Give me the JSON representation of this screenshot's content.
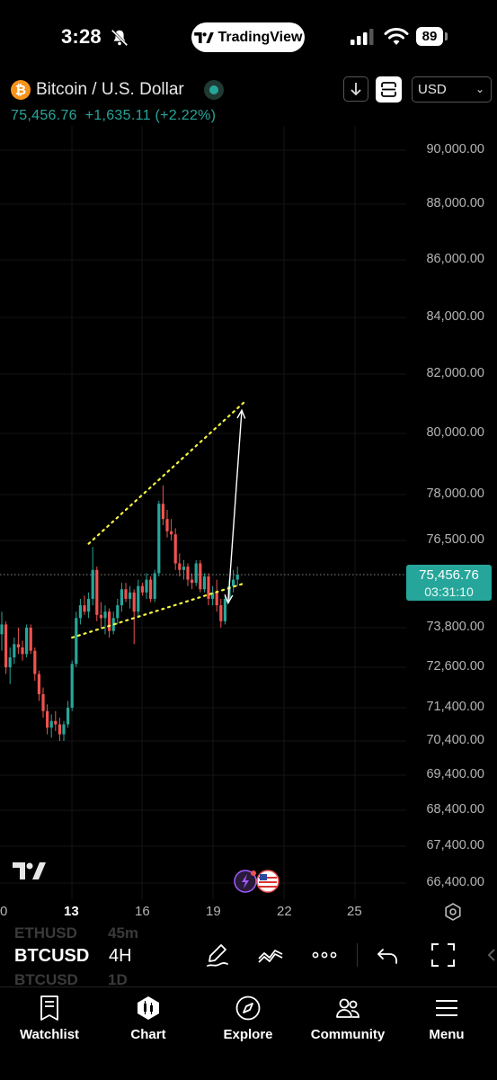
{
  "status_bar": {
    "time": "3:28",
    "battery": "89",
    "tradingview_label": "TradingView"
  },
  "header": {
    "title": "Bitcoin / U.S. Dollar",
    "price": "75,456.76",
    "change": "+1,635.11",
    "change_pct": "(+2.22%)",
    "currency": "USD"
  },
  "price_axis": [
    "90,000.00",
    "88,000.00",
    "86,000.00",
    "84,000.00",
    "82,000.00",
    "80,000.00",
    "78,000.00",
    "76,500.00",
    "73,800.00",
    "72,600.00",
    "71,400.00",
    "70,400.00",
    "69,400.00",
    "68,400.00",
    "67,400.00",
    "66,400.00"
  ],
  "last_price_badge": {
    "price": "75,456.76",
    "countdown": "03:31:10"
  },
  "date_axis": [
    "0",
    "13",
    "16",
    "19",
    "22",
    "25"
  ],
  "toolbar": {
    "symbol": "BTCUSD",
    "interval": "4H",
    "ghost_above_symbol": "ETHUSD",
    "ghost_above_interval": "45m",
    "ghost_below_symbol": "BTCUSD",
    "ghost_below_interval": "1D"
  },
  "bottom_nav": [
    {
      "label": "Watchlist",
      "icon": "watchlist-icon"
    },
    {
      "label": "Chart",
      "icon": "chart-icon"
    },
    {
      "label": "Explore",
      "icon": "compass-icon"
    },
    {
      "label": "Community",
      "icon": "community-icon"
    },
    {
      "label": "Menu",
      "icon": "menu-icon"
    }
  ],
  "colors": {
    "up": "#26a69a",
    "down": "#ef5350",
    "trendline": "#f5f542",
    "background": "#000000"
  },
  "chart_data": {
    "type": "candlestick",
    "symbol": "BTCUSD",
    "interval": "4H",
    "last_price": 75456.76,
    "candles": [
      {
        "o": 73600,
        "h": 74300,
        "l": 73100,
        "c": 73900
      },
      {
        "o": 73900,
        "h": 74000,
        "l": 72400,
        "c": 72600
      },
      {
        "o": 72600,
        "h": 73200,
        "l": 72100,
        "c": 72900
      },
      {
        "o": 72900,
        "h": 73500,
        "l": 72700,
        "c": 73300
      },
      {
        "o": 73300,
        "h": 73800,
        "l": 73000,
        "c": 73200
      },
      {
        "o": 73200,
        "h": 73400,
        "l": 72800,
        "c": 73000
      },
      {
        "o": 73000,
        "h": 73900,
        "l": 72900,
        "c": 73800
      },
      {
        "o": 73800,
        "h": 73900,
        "l": 73000,
        "c": 73100
      },
      {
        "o": 73100,
        "h": 73200,
        "l": 72200,
        "c": 72400
      },
      {
        "o": 72400,
        "h": 72500,
        "l": 71600,
        "c": 71800
      },
      {
        "o": 71800,
        "h": 72000,
        "l": 71100,
        "c": 71300
      },
      {
        "o": 71300,
        "h": 71500,
        "l": 70600,
        "c": 70800
      },
      {
        "o": 70800,
        "h": 71200,
        "l": 70500,
        "c": 71000
      },
      {
        "o": 71000,
        "h": 71300,
        "l": 70700,
        "c": 70900
      },
      {
        "o": 70900,
        "h": 71100,
        "l": 70400,
        "c": 70600
      },
      {
        "o": 70600,
        "h": 71000,
        "l": 70400,
        "c": 70900
      },
      {
        "o": 70900,
        "h": 71600,
        "l": 70800,
        "c": 71400
      },
      {
        "o": 71400,
        "h": 72800,
        "l": 71300,
        "c": 72700
      },
      {
        "o": 72700,
        "h": 74300,
        "l": 72600,
        "c": 74100
      },
      {
        "o": 74100,
        "h": 74700,
        "l": 73900,
        "c": 74500
      },
      {
        "o": 74500,
        "h": 74800,
        "l": 74200,
        "c": 74300
      },
      {
        "o": 74300,
        "h": 74900,
        "l": 74100,
        "c": 74700
      },
      {
        "o": 74700,
        "h": 76300,
        "l": 74500,
        "c": 75600
      },
      {
        "o": 75600,
        "h": 75700,
        "l": 74000,
        "c": 74200
      },
      {
        "o": 74200,
        "h": 74600,
        "l": 73800,
        "c": 74100
      },
      {
        "o": 74100,
        "h": 74500,
        "l": 73600,
        "c": 74300
      },
      {
        "o": 74300,
        "h": 74400,
        "l": 73500,
        "c": 73700
      },
      {
        "o": 73700,
        "h": 74300,
        "l": 73600,
        "c": 74100
      },
      {
        "o": 74100,
        "h": 74700,
        "l": 73900,
        "c": 74500
      },
      {
        "o": 74500,
        "h": 75200,
        "l": 74300,
        "c": 75000
      },
      {
        "o": 75000,
        "h": 75200,
        "l": 74600,
        "c": 74700
      },
      {
        "o": 74700,
        "h": 75100,
        "l": 74400,
        "c": 74900
      },
      {
        "o": 74900,
        "h": 75000,
        "l": 73300,
        "c": 74300
      },
      {
        "o": 74300,
        "h": 75300,
        "l": 74100,
        "c": 75100
      },
      {
        "o": 75100,
        "h": 75200,
        "l": 74800,
        "c": 74900
      },
      {
        "o": 74900,
        "h": 75500,
        "l": 74700,
        "c": 75300
      },
      {
        "o": 75300,
        "h": 75400,
        "l": 74600,
        "c": 74700
      },
      {
        "o": 74700,
        "h": 75600,
        "l": 74600,
        "c": 75500
      },
      {
        "o": 75500,
        "h": 77800,
        "l": 75400,
        "c": 77700
      },
      {
        "o": 77700,
        "h": 78300,
        "l": 77000,
        "c": 77200
      },
      {
        "o": 77200,
        "h": 77500,
        "l": 76600,
        "c": 76800
      },
      {
        "o": 76800,
        "h": 77200,
        "l": 76500,
        "c": 76700
      },
      {
        "o": 76700,
        "h": 76900,
        "l": 75600,
        "c": 75800
      },
      {
        "o": 75800,
        "h": 76100,
        "l": 75400,
        "c": 75600
      },
      {
        "o": 75600,
        "h": 75900,
        "l": 75300,
        "c": 75700
      },
      {
        "o": 75700,
        "h": 75800,
        "l": 75100,
        "c": 75300
      },
      {
        "o": 75300,
        "h": 75500,
        "l": 75000,
        "c": 75200
      },
      {
        "o": 75200,
        "h": 75900,
        "l": 75100,
        "c": 75800
      },
      {
        "o": 75800,
        "h": 75900,
        "l": 74900,
        "c": 75000
      },
      {
        "o": 75000,
        "h": 75500,
        "l": 74900,
        "c": 75400
      },
      {
        "o": 75400,
        "h": 75500,
        "l": 74500,
        "c": 74700
      },
      {
        "o": 74700,
        "h": 75100,
        "l": 74500,
        "c": 74900
      },
      {
        "o": 74900,
        "h": 75300,
        "l": 74300,
        "c": 74500
      },
      {
        "o": 74500,
        "h": 74700,
        "l": 73800,
        "c": 74000
      },
      {
        "o": 74000,
        "h": 74800,
        "l": 73900,
        "c": 74700
      },
      {
        "o": 74700,
        "h": 75300,
        "l": 74600,
        "c": 75100
      },
      {
        "o": 75100,
        "h": 75600,
        "l": 74900,
        "c": 75300
      },
      {
        "o": 75300,
        "h": 75700,
        "l": 75100,
        "c": 75457
      }
    ],
    "annotations": {
      "upper_trendline": [
        {
          "i": 21,
          "p": 76400
        },
        {
          "i": 59,
          "p": 81100
        }
      ],
      "lower_trendline": [
        {
          "i": 17,
          "p": 73500
        },
        {
          "i": 59,
          "p": 75200
        }
      ],
      "arrow": [
        {
          "i": 53,
          "p": 75300
        },
        {
          "i": 55,
          "p": 80600
        }
      ]
    }
  }
}
